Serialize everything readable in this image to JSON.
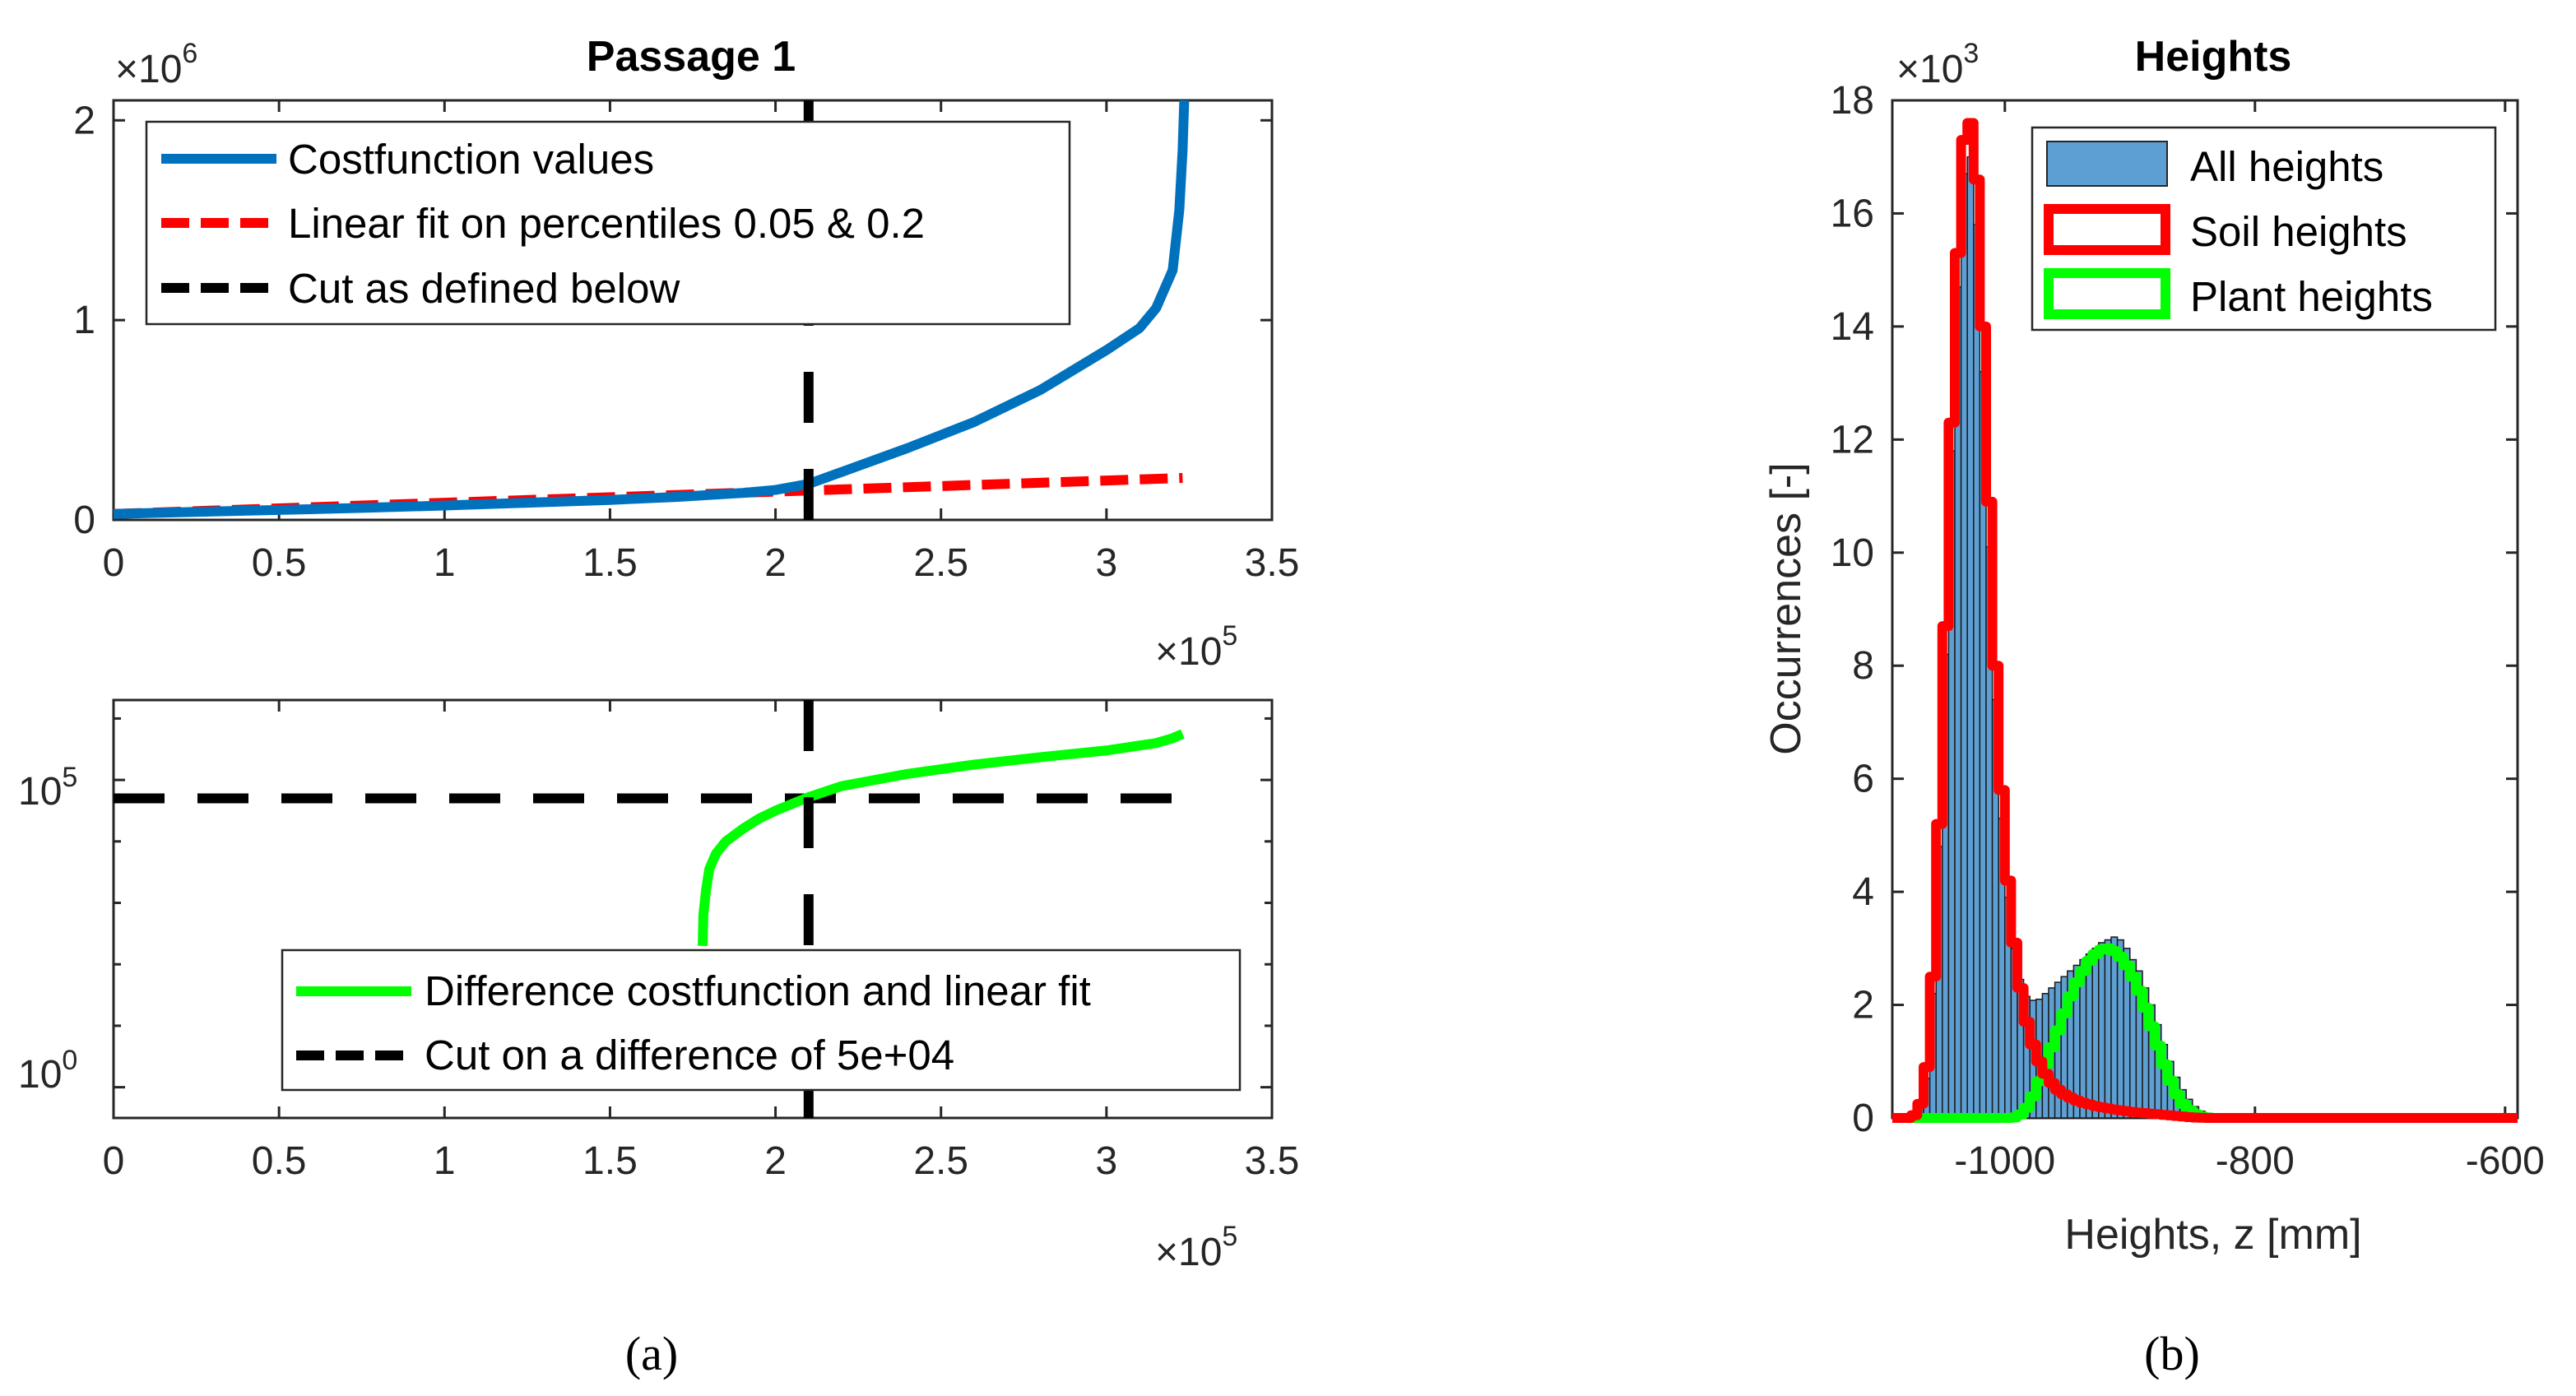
{
  "chart_data": [
    {
      "type": "line",
      "panel": "a-top",
      "title": "Passage 1",
      "xlabel": "",
      "ylabel": "",
      "xlim": [
        0,
        350000
      ],
      "ylim": [
        0,
        2100000
      ],
      "x_exponent": "×10",
      "x_exponent_power": "5",
      "y_exponent": "×10",
      "y_exponent_power": "6",
      "xticks": [
        0,
        0.5,
        1,
        1.5,
        2,
        2.5,
        3,
        3.5
      ],
      "xtick_labels": [
        "0",
        "0.5",
        "1",
        "1.5",
        "2",
        "2.5",
        "3",
        "3.5"
      ],
      "yticks": [
        0,
        1,
        2
      ],
      "ytick_labels": [
        "0",
        "1",
        "2"
      ],
      "cut_x": 210000,
      "legend_position": "top-left",
      "series": [
        {
          "name": "Costfunction values",
          "color": "#0072BD",
          "style": "solid",
          "x": [
            0,
            25000,
            50000,
            75000,
            100000,
            125000,
            150000,
            170000,
            190000,
            200000,
            210000,
            220000,
            240000,
            260000,
            280000,
            300000,
            310000,
            315000,
            320000,
            322000,
            323000,
            323500
          ],
          "y": [
            30000,
            40000,
            50000,
            60000,
            72000,
            86000,
            100000,
            115000,
            135000,
            150000,
            180000,
            240000,
            360000,
            490000,
            650000,
            850000,
            960000,
            1060000,
            1250000,
            1550000,
            1850000,
            2100000
          ]
        },
        {
          "name": "Linear fit on percentiles 0.05 & 0.2",
          "color": "#FF0000",
          "style": "dashed",
          "x": [
            0,
            323000
          ],
          "y": [
            30000,
            210000
          ]
        },
        {
          "name": "Cut as defined below",
          "color": "#000000",
          "style": "dashed",
          "x": [
            210000,
            210000
          ],
          "y": [
            0,
            2100000
          ]
        }
      ]
    },
    {
      "type": "line",
      "panel": "a-bottom",
      "title": "",
      "yscale": "log",
      "xlim": [
        0,
        350000
      ],
      "ylim_exponent": [
        -0.5,
        6.3
      ],
      "x_exponent": "×10",
      "x_exponent_power": "5",
      "xticks": [
        0,
        0.5,
        1,
        1.5,
        2,
        2.5,
        3,
        3.5
      ],
      "xtick_labels": [
        "0",
        "0.5",
        "1",
        "1.5",
        "2",
        "2.5",
        "3",
        "3.5"
      ],
      "yticks": [
        0,
        5
      ],
      "ytick_base": "10",
      "ytick_powers": [
        "0",
        "5"
      ],
      "cut_x": 210000,
      "cut_level": 50000,
      "legend_position": "bottom-right",
      "series": [
        {
          "name": "Difference costfunction and linear fit",
          "color": "#00FF00",
          "style": "solid",
          "x": [
            178000,
            178200,
            179000,
            180000,
            182000,
            185000,
            190000,
            195000,
            200000,
            210000,
            220000,
            240000,
            260000,
            280000,
            300000,
            315000,
            320000,
            323000
          ],
          "log10_y": [
            2.3,
            2.8,
            3.2,
            3.55,
            3.8,
            4.0,
            4.2,
            4.37,
            4.5,
            4.72,
            4.9,
            5.1,
            5.25,
            5.37,
            5.48,
            5.6,
            5.68,
            5.75
          ]
        },
        {
          "name": "Cut on a difference of 5e+04",
          "color": "#000000",
          "style": "dashed",
          "x": [
            0,
            323000
          ],
          "log10_y": [
            4.7,
            4.7
          ]
        }
      ]
    },
    {
      "type": "bar",
      "panel": "b",
      "title": "Heights",
      "xlabel": "Heights, z [mm]",
      "ylabel": "Occurrences [-]",
      "xlim": [
        -1090,
        -590
      ],
      "ylim": [
        0,
        18000
      ],
      "y_exponent": "×10",
      "y_exponent_power": "3",
      "xticks": [
        -1000,
        -800,
        -600
      ],
      "xtick_labels": [
        "-1000",
        "-800",
        "-600"
      ],
      "yticks": [
        0,
        2,
        4,
        6,
        8,
        10,
        12,
        14,
        16,
        18
      ],
      "ytick_labels": [
        "0",
        "2",
        "4",
        "6",
        "8",
        "10",
        "12",
        "14",
        "16",
        "18"
      ],
      "legend_position": "top-right",
      "legend": [
        "All heights",
        "Soil heights",
        "Plant heights"
      ],
      "colors": {
        "all": "#5E9FD3",
        "soil": "#FF0000",
        "plant": "#00FF00"
      },
      "bin_width": 5,
      "bins_start": -1090,
      "all_heights": [
        0,
        0,
        0,
        30,
        180,
        700,
        2200,
        4800,
        8200,
        11800,
        14700,
        16700,
        17000,
        15800,
        13200,
        10100,
        7400,
        5300,
        3900,
        3000,
        2450,
        2150,
        2080,
        2100,
        2200,
        2300,
        2400,
        2500,
        2600,
        2700,
        2800,
        2900,
        3000,
        3100,
        3150,
        3200,
        3150,
        3000,
        2800,
        2600,
        2300,
        2000,
        1650,
        1300,
        1000,
        720,
        500,
        330,
        200,
        120,
        70,
        40,
        20,
        10,
        5,
        0,
        0,
        0,
        0,
        0,
        0,
        0,
        0,
        0,
        0,
        0,
        0,
        0,
        0,
        0,
        0,
        0,
        0,
        0,
        0,
        0,
        0,
        0,
        0,
        0,
        0,
        0,
        0,
        0,
        0,
        0,
        0,
        0,
        0,
        0,
        0,
        0,
        0,
        0,
        0,
        0,
        0,
        0,
        0,
        0
      ],
      "soil_heights": [
        0,
        0,
        0,
        50,
        250,
        900,
        2500,
        5200,
        8700,
        12300,
        15300,
        17300,
        17600,
        16600,
        14000,
        10900,
        8000,
        5800,
        4200,
        3100,
        2300,
        1700,
        1300,
        1000,
        780,
        620,
        500,
        420,
        360,
        310,
        270,
        240,
        210,
        190,
        170,
        150,
        135,
        120,
        105,
        95,
        85,
        75,
        65,
        55,
        45,
        35,
        25,
        15,
        8,
        3,
        0,
        0,
        0,
        0,
        0,
        0,
        0,
        0,
        0,
        0,
        0,
        0,
        0,
        0,
        0,
        0,
        0,
        0,
        0,
        0,
        0,
        0,
        0,
        0,
        0,
        0,
        0,
        0,
        0,
        0,
        0,
        0,
        0,
        0,
        0,
        0,
        0,
        0,
        0,
        0,
        0,
        0,
        0,
        0,
        0,
        0,
        0,
        0,
        0,
        0
      ],
      "plant_heights": [
        0,
        0,
        0,
        0,
        0,
        0,
        0,
        0,
        0,
        0,
        0,
        0,
        0,
        0,
        0,
        0,
        0,
        0,
        0,
        10,
        60,
        180,
        380,
        650,
        950,
        1250,
        1550,
        1850,
        2150,
        2400,
        2600,
        2780,
        2900,
        2980,
        3000,
        2950,
        2850,
        2700,
        2500,
        2250,
        1950,
        1620,
        1280,
        950,
        660,
        420,
        250,
        140,
        70,
        30,
        10,
        0,
        0,
        0,
        0,
        0,
        0,
        0,
        0,
        0,
        0,
        0,
        0,
        0,
        0,
        0,
        0,
        0,
        0,
        0,
        0,
        0,
        0,
        0,
        0,
        0,
        0,
        0,
        0,
        0,
        0,
        0,
        0,
        0,
        0,
        0,
        0,
        0,
        0,
        0,
        0,
        0,
        0,
        0,
        0,
        0,
        0,
        0,
        0,
        0
      ]
    }
  ],
  "captions": {
    "a": "(a)",
    "b": "(b)"
  }
}
